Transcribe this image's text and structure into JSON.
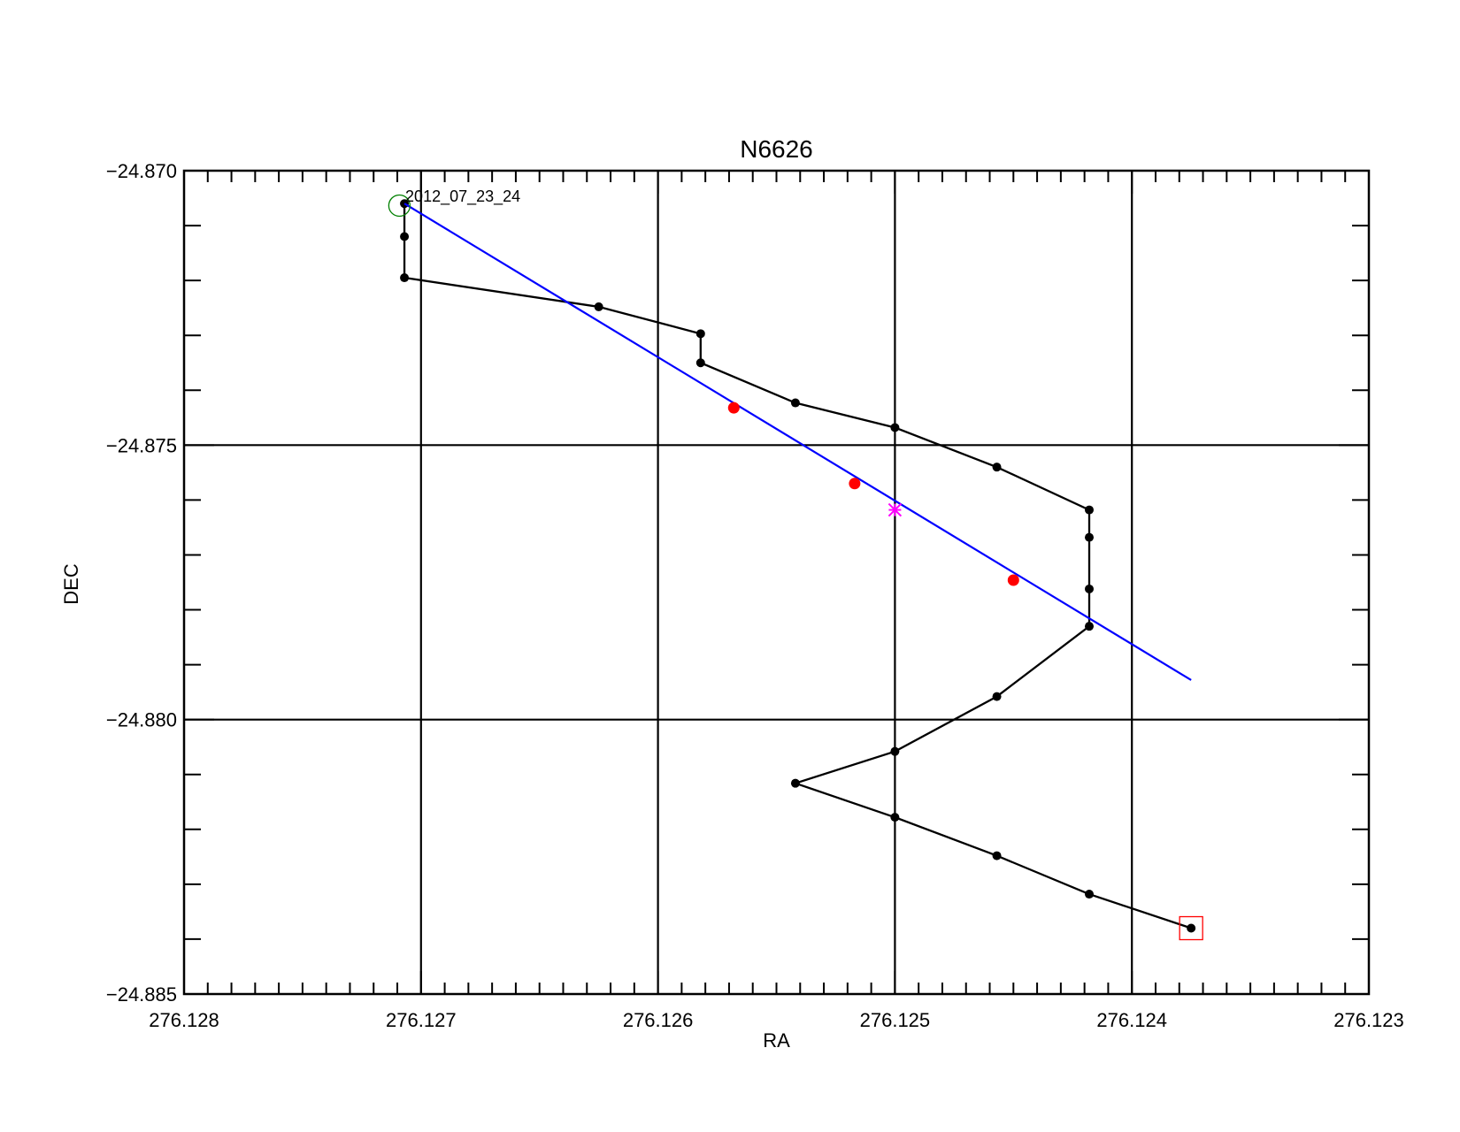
{
  "chart_data": {
    "type": "line",
    "title": "N6626",
    "xlabel": "RA",
    "ylabel": "DEC",
    "xlim": [
      276.128,
      276.123
    ],
    "ylim": [
      -24.885,
      -24.87
    ],
    "x_reversed": true,
    "grid": true,
    "x_ticks": [
      {
        "value": 276.128,
        "label": "276.128"
      },
      {
        "value": 276.127,
        "label": "276.127"
      },
      {
        "value": 276.126,
        "label": "276.126"
      },
      {
        "value": 276.125,
        "label": "276.125"
      },
      {
        "value": 276.124,
        "label": "276.124"
      },
      {
        "value": 276.123,
        "label": "276.123"
      }
    ],
    "y_ticks": [
      {
        "value": -24.87,
        "label": "−24.870"
      },
      {
        "value": -24.875,
        "label": "−24.875"
      },
      {
        "value": -24.88,
        "label": "−24.880"
      },
      {
        "value": -24.885,
        "label": "−24.885"
      }
    ],
    "x_grid": [
      276.127,
      276.126,
      276.125,
      276.124
    ],
    "y_grid": [
      -24.875,
      -24.88
    ],
    "x_minor_step": 0.0001,
    "y_minor_step": 0.001,
    "series": [
      {
        "kind": "path",
        "color": "#000000",
        "points": [
          [
            276.12707,
            -24.8706
          ],
          [
            276.12707,
            -24.8712
          ],
          [
            276.12707,
            -24.87195
          ],
          [
            276.12625,
            -24.87248
          ],
          [
            276.12582,
            -24.87297
          ],
          [
            276.12582,
            -24.8735
          ],
          [
            276.12542,
            -24.87423
          ],
          [
            276.125,
            -24.87468
          ],
          [
            276.12457,
            -24.8754
          ],
          [
            276.12418,
            -24.87618
          ],
          [
            276.12418,
            -24.87668
          ],
          [
            276.12418,
            -24.87762
          ],
          [
            276.12418,
            -24.8783
          ],
          [
            276.12457,
            -24.87958
          ],
          [
            276.125,
            -24.88058
          ],
          [
            276.12542,
            -24.88116
          ],
          [
            276.125,
            -24.88178
          ],
          [
            276.12457,
            -24.88248
          ],
          [
            276.12418,
            -24.88318
          ],
          [
            276.12375,
            -24.8838
          ]
        ]
      },
      {
        "kind": "fit-line",
        "color": "#0000ff",
        "points": [
          [
            276.12707,
            -24.8706
          ],
          [
            276.12375,
            -24.87928
          ]
        ]
      },
      {
        "kind": "marked-points",
        "color": "#ff0000",
        "points": [
          [
            276.12568,
            -24.87432
          ],
          [
            276.12517,
            -24.8757
          ],
          [
            276.1245,
            -24.87746
          ]
        ]
      },
      {
        "kind": "center-marker",
        "color": "#ff00ff",
        "points": [
          [
            276.125,
            -24.87618
          ]
        ]
      },
      {
        "kind": "start-marker",
        "color": "#008000",
        "points": [
          [
            276.12708,
            -24.87062
          ]
        ]
      },
      {
        "kind": "end-marker",
        "color": "#ff0000",
        "points": [
          [
            276.12375,
            -24.8838
          ]
        ]
      }
    ],
    "annotations": [
      {
        "text": "2012_07_23_24",
        "x": 276.12707,
        "y": -24.8706
      }
    ]
  }
}
